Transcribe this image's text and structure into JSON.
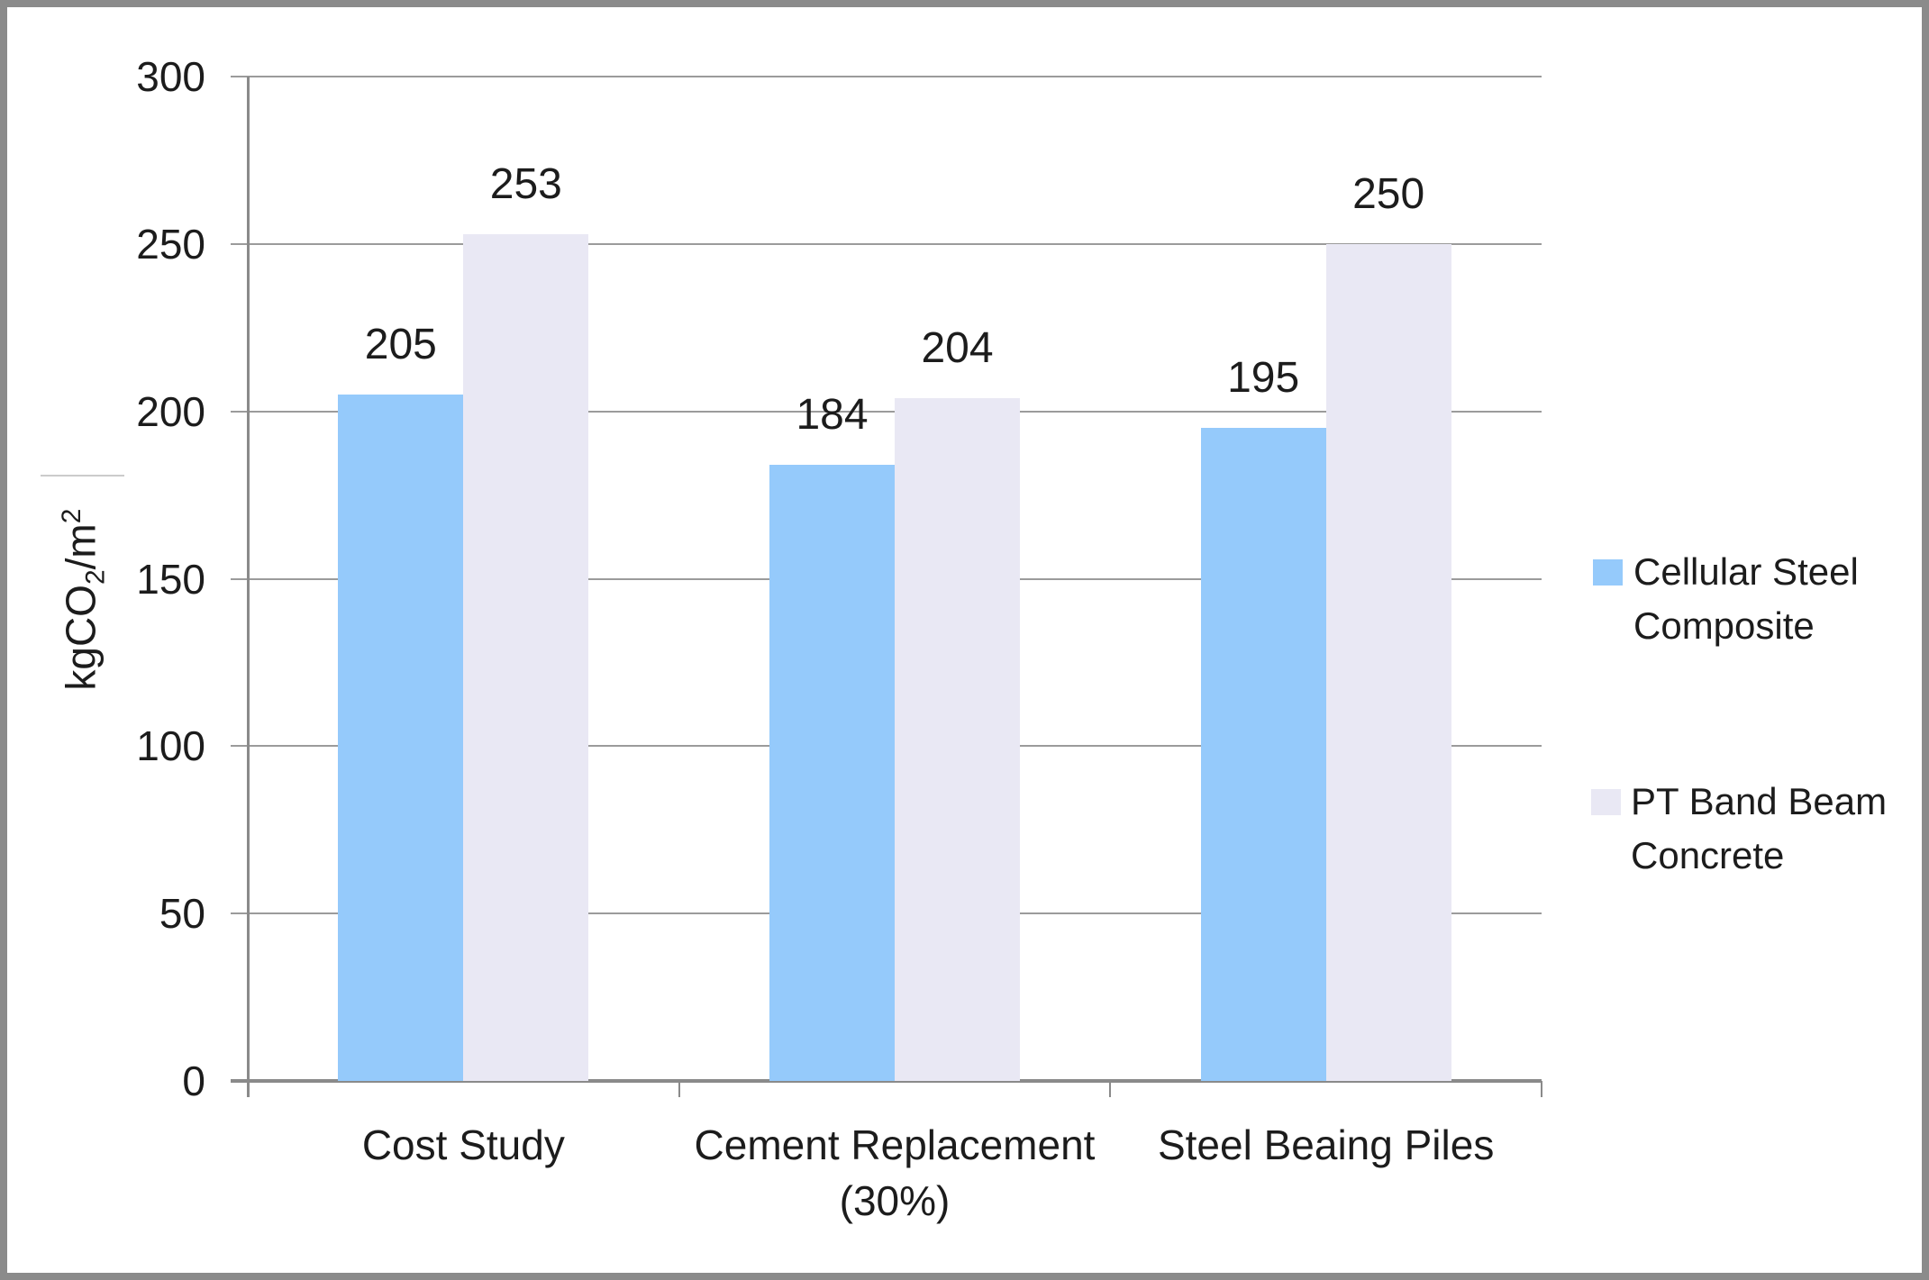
{
  "figure": {
    "background": "#ffffff",
    "border_color": "#8b8b8b"
  },
  "chart_data": {
    "type": "bar",
    "title": "",
    "categories": [
      "Cost Study",
      "Cement Replacement (30%)",
      "Steel Beaing Piles"
    ],
    "series": [
      {
        "name": "Cellular Steel Composite",
        "color": "#95CAFB",
        "values": [
          205,
          184,
          195
        ]
      },
      {
        "name": "PT Band Beam Concrete",
        "color": "#E9E8F4",
        "values": [
          253,
          204,
          250
        ]
      }
    ],
    "data_labels": [
      [
        205,
        184,
        195
      ],
      [
        253,
        204,
        250
      ]
    ],
    "xlabel": "",
    "ylabel": "kgCO2/m2",
    "ylabel_parts": {
      "prefix": "kgCO",
      "sub": "2",
      "mid": "/m",
      "sup": "2"
    },
    "yticks": [
      0,
      50,
      100,
      150,
      200,
      250,
      300
    ],
    "ylim": [
      0,
      300
    ],
    "grid": true,
    "legend_position": "right",
    "legend_items": [
      {
        "label": "Cellular Steel Composite",
        "color": "#95CAFB"
      },
      {
        "label": "PT Band Beam Concrete",
        "color": "#E9E8F4"
      }
    ],
    "colors": {
      "gridline": "#9b9b9b",
      "axis": "#8a8a8a",
      "text": "#1c1c1c"
    }
  }
}
